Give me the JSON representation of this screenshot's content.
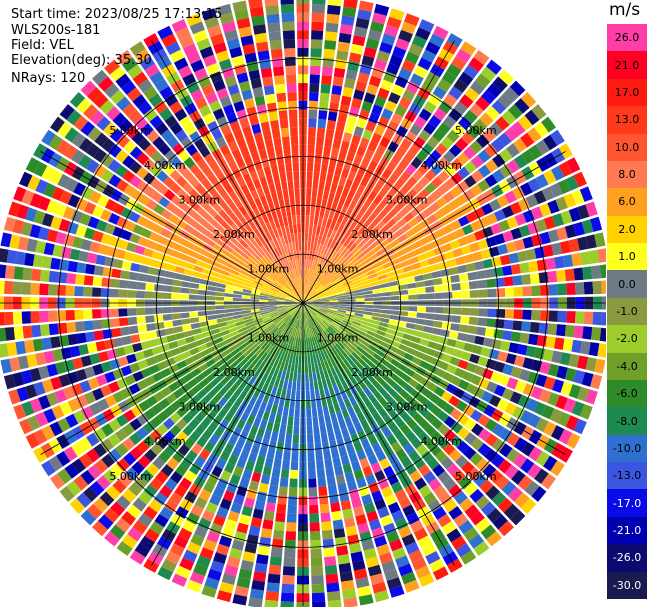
{
  "info": {
    "start_time": "Start time: 2023/08/25 17:13:15",
    "instrument": "WLS200s-181",
    "field": "Field: VEL",
    "elevation": "Elevation(deg): 35.30",
    "nrays": "NRays: 120"
  },
  "colorbar": {
    "unit": "m/s",
    "labels": [
      "26.0",
      "21.0",
      "17.0",
      "13.0",
      "10.0",
      "8.0",
      "6.0",
      "2.0",
      "1.0",
      "0.0",
      "-1.0",
      "-2.0",
      "-4.0",
      "-6.0",
      "-8.0",
      "-10.0",
      "-13.0",
      "-17.0",
      "-21.0",
      "-26.0",
      "-30.0"
    ],
    "colors": [
      "#ff3ea8",
      "#ff0022",
      "#ff1a10",
      "#ff3a1a",
      "#ff5530",
      "#ff7a50",
      "#ffa020",
      "#ffd200",
      "#ffff20",
      "#6e7b85",
      "#8a9a40",
      "#9ccd2a",
      "#6fa02a",
      "#2e8b2a",
      "#1f8a50",
      "#2f6fd0",
      "#3a55e0",
      "#0a0ae6",
      "#0000b0",
      "#0a0a70",
      "#1a1a50"
    ]
  },
  "chart_data": {
    "type": "ppi",
    "field": "VEL",
    "units": "m/s",
    "range_ring_labels": [
      "1.00km",
      "2.00km",
      "3.00km",
      "4.00km",
      "5.00km"
    ],
    "range_rings_km": [
      1,
      2,
      3,
      4,
      5
    ],
    "max_range_km": 6.2,
    "n_rays": 120,
    "velocity_pattern": {
      "north_sector": 13.0,
      "south_sector": -10.0,
      "east_sector": 0.0,
      "west_sector": 0.0,
      "near_field_noise_km": 3.8
    }
  }
}
